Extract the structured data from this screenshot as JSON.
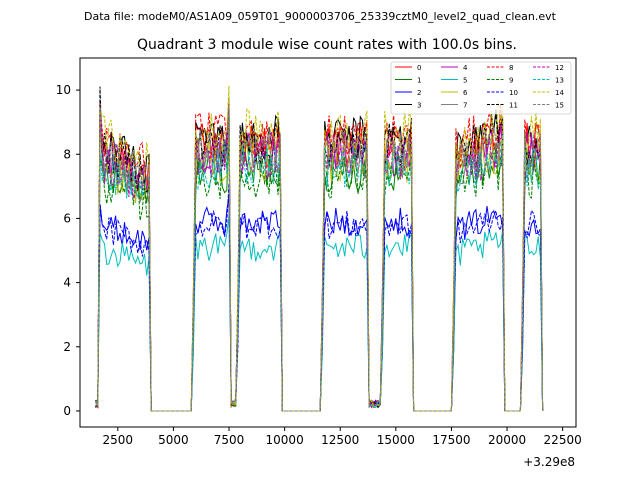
{
  "figure": {
    "suptitle": "Data file: modeM0/AS1A09_059T01_9000003706_25339cztM0_level2_quad_clean.evt"
  },
  "chart_data": {
    "type": "line",
    "title": "Quadrant 3 module wise count rates with 100.0s bins.",
    "xlabel": "",
    "ylabel": "",
    "x_offset_label": "+3.29e8",
    "xlim": [
      800,
      23100
    ],
    "ylim": [
      -0.5,
      11.0
    ],
    "xticks": [
      2500,
      5000,
      7500,
      10000,
      12500,
      15000,
      17500,
      20000,
      22500
    ],
    "xtick_labels": [
      "2500",
      "5000",
      "7500",
      "10000",
      "12500",
      "15000",
      "17500",
      "20000",
      "22500"
    ],
    "yticks": [
      0,
      2,
      4,
      6,
      8,
      10
    ],
    "ytick_labels": [
      "0",
      "2",
      "4",
      "6",
      "8",
      "10"
    ],
    "legend_position": "top-right",
    "x_start": 1500,
    "x_step": 100,
    "x_end": 21600,
    "orbits": [
      {
        "start": 1500,
        "shape": "spike",
        "peak": 10.4,
        "decay_to": 0.8,
        "end": 4000
      },
      {
        "start": 4000,
        "shape": "gap",
        "end": 5900
      },
      {
        "start": 5900,
        "shape": "plateau",
        "level": 1.0,
        "end": 7500
      },
      {
        "start": 7500,
        "shape": "spike_short",
        "end": 7900
      },
      {
        "start": 7900,
        "shape": "plateau",
        "level": 1.0,
        "end": 9900
      },
      {
        "start": 9900,
        "shape": "gap",
        "end": 11700
      },
      {
        "start": 11700,
        "shape": "plateau",
        "level": 1.0,
        "end": 13800
      },
      {
        "start": 13800,
        "shape": "dip",
        "end": 14400
      },
      {
        "start": 14400,
        "shape": "plateau",
        "level": 1.0,
        "end": 15800
      },
      {
        "start": 15800,
        "shape": "gap",
        "end": 17600
      },
      {
        "start": 17600,
        "shape": "plateau_rising",
        "level": 1.0,
        "end": 19900
      },
      {
        "start": 19900,
        "shape": "gap",
        "end": 20700
      },
      {
        "start": 20700,
        "shape": "plateau",
        "level": 1.0,
        "end": 21600
      }
    ],
    "series": [
      {
        "name": "0",
        "color": "#ff0000",
        "dash": "solid",
        "mean": 8.3
      },
      {
        "name": "1",
        "color": "#008000",
        "dash": "solid",
        "mean": 7.5
      },
      {
        "name": "2",
        "color": "#0000ff",
        "dash": "solid",
        "mean": 5.9
      },
      {
        "name": "3",
        "color": "#000000",
        "dash": "solid",
        "mean": 8.5
      },
      {
        "name": "4",
        "color": "#bf00bf",
        "dash": "solid",
        "mean": 8.0
      },
      {
        "name": "5",
        "color": "#00bfbf",
        "dash": "solid",
        "mean": 5.1
      },
      {
        "name": "6",
        "color": "#bfbf00",
        "dash": "solid",
        "mean": 7.8
      },
      {
        "name": "7",
        "color": "#808080",
        "dash": "solid",
        "mean": 7.9
      },
      {
        "name": "8",
        "color": "#ff0000",
        "dash": "dashed",
        "mean": 8.6
      },
      {
        "name": "9",
        "color": "#008000",
        "dash": "dashed",
        "mean": 7.3
      },
      {
        "name": "10",
        "color": "#0000ff",
        "dash": "dashed",
        "mean": 5.8
      },
      {
        "name": "11",
        "color": "#000000",
        "dash": "dashed",
        "mean": 8.3
      },
      {
        "name": "12",
        "color": "#bf00bf",
        "dash": "dashed",
        "mean": 7.9
      },
      {
        "name": "13",
        "color": "#00bfbf",
        "dash": "dashed",
        "mean": 7.6
      },
      {
        "name": "14",
        "color": "#bfbf00",
        "dash": "dashed",
        "mean": 8.7
      },
      {
        "name": "15",
        "color": "#808080",
        "dash": "dashed",
        "mean": 8.1
      }
    ]
  }
}
